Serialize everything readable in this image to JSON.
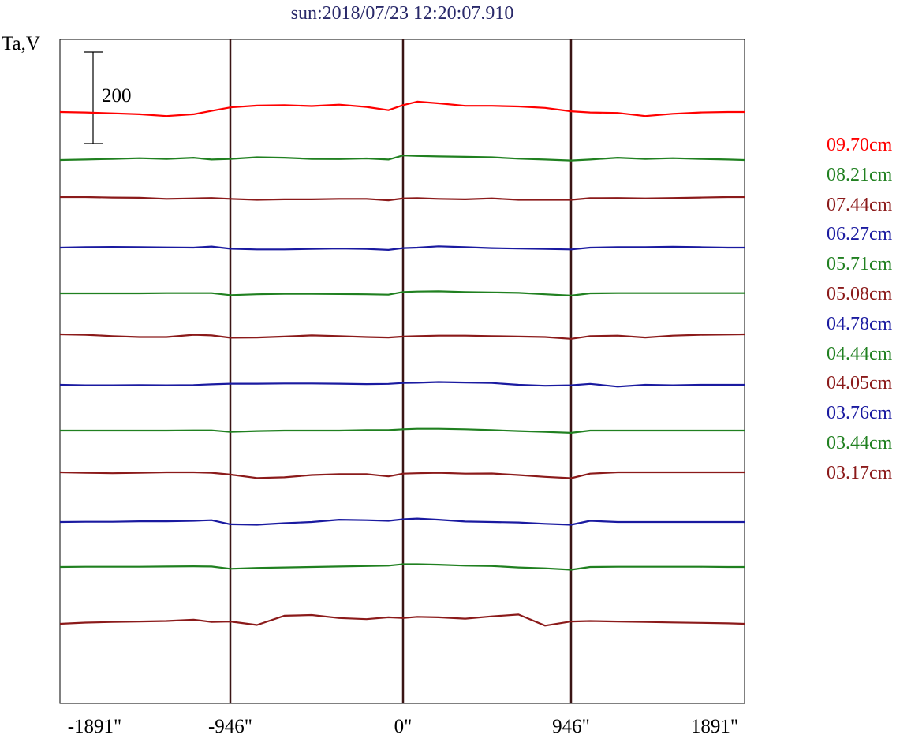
{
  "title": "sun:2018/07/23 12:20:07.910",
  "ylabel": "Ta,V",
  "scale_bar_label": "200",
  "chart_data": {
    "type": "line",
    "title": "sun:2018/07/23 12:20:07.910",
    "xlabel": "",
    "ylabel": "Ta,V",
    "xlim": [
      -1891,
      1891
    ],
    "x_ticks": [
      "-1891\"",
      "-946\"",
      "0\"",
      "946\"",
      "1891\""
    ],
    "x_tick_values": [
      -1891,
      -946,
      0,
      946,
      1891
    ],
    "vertical_lines": [
      -946,
      0,
      946
    ],
    "scale_bar_value": 200,
    "grid": false,
    "legend_position": "right",
    "x": [
      -1891,
      -1750,
      -1600,
      -1450,
      -1300,
      -1150,
      -1050,
      -946,
      -800,
      -650,
      -500,
      -350,
      -200,
      -80,
      0,
      80,
      200,
      350,
      500,
      650,
      800,
      946,
      1050,
      1200,
      1350,
      1500,
      1650,
      1800,
      1891
    ],
    "series": [
      {
        "name": "09.70cm",
        "color": "#ff0000",
        "values": [
          0,
          -2,
          -6,
          -10,
          -18,
          -10,
          5,
          20,
          28,
          30,
          26,
          32,
          22,
          8,
          30,
          45,
          38,
          27,
          27,
          24,
          18,
          3,
          -2,
          -4,
          -18,
          -8,
          -2,
          0,
          0
        ]
      },
      {
        "name": "08.21cm",
        "color": "#208020",
        "values": [
          0,
          2,
          5,
          8,
          5,
          10,
          2,
          5,
          12,
          10,
          5,
          4,
          7,
          2,
          20,
          18,
          16,
          14,
          12,
          6,
          2,
          -2,
          2,
          10,
          5,
          8,
          5,
          2,
          0
        ]
      },
      {
        "name": "07.44cm",
        "color": "#8b1a1a",
        "values": [
          0,
          0,
          -2,
          -3,
          -8,
          -6,
          -4,
          -8,
          -12,
          -10,
          -10,
          -8,
          -8,
          -14,
          -6,
          -5,
          -8,
          -10,
          -6,
          -12,
          -12,
          -12,
          -5,
          -4,
          -6,
          -4,
          -2,
          0,
          0
        ]
      },
      {
        "name": "06.27cm",
        "color": "#1a1aa0",
        "values": [
          0,
          2,
          3,
          2,
          1,
          0,
          5,
          -5,
          -8,
          -8,
          -6,
          -4,
          -6,
          -10,
          -2,
          0,
          6,
          2,
          -2,
          -4,
          -6,
          -8,
          0,
          2,
          2,
          4,
          2,
          0,
          0
        ]
      },
      {
        "name": "05.71cm",
        "color": "#208020",
        "values": [
          0,
          0,
          0,
          0,
          1,
          1,
          1,
          -8,
          -4,
          -2,
          -2,
          -3,
          -4,
          -6,
          6,
          8,
          9,
          6,
          4,
          2,
          -4,
          -10,
          0,
          1,
          1,
          1,
          1,
          1,
          1
        ]
      },
      {
        "name": "05.08cm",
        "color": "#8b1a1a",
        "values": [
          0,
          -2,
          -8,
          -12,
          -12,
          -2,
          -5,
          -15,
          -14,
          -10,
          -5,
          -8,
          -12,
          -14,
          -10,
          -8,
          -6,
          -6,
          -8,
          -10,
          -12,
          -20,
          -8,
          -6,
          -14,
          -6,
          -2,
          -1,
          0
        ]
      },
      {
        "name": "04.78cm",
        "color": "#1a1aa0",
        "values": [
          0,
          -2,
          -2,
          -1,
          -2,
          -1,
          2,
          5,
          5,
          6,
          6,
          5,
          3,
          4,
          8,
          9,
          12,
          10,
          8,
          0,
          -4,
          -2,
          4,
          -8,
          0,
          -2,
          0,
          0,
          0
        ]
      },
      {
        "name": "04.44cm",
        "color": "#208020",
        "values": [
          0,
          0,
          0,
          0,
          0,
          1,
          1,
          -6,
          -2,
          0,
          0,
          0,
          2,
          2,
          6,
          8,
          8,
          6,
          2,
          -2,
          -6,
          -10,
          0,
          0,
          0,
          0,
          0,
          0,
          0
        ]
      },
      {
        "name": "04.05cm",
        "color": "#8b1a1a",
        "values": [
          0,
          -2,
          -4,
          -2,
          0,
          0,
          -2,
          -10,
          -25,
          -22,
          -12,
          -8,
          -8,
          -18,
          -6,
          -4,
          -2,
          -6,
          -5,
          -12,
          -20,
          -26,
          -6,
          0,
          0,
          0,
          0,
          0,
          0
        ]
      },
      {
        "name": "03.76cm",
        "color": "#1a1aa0",
        "values": [
          0,
          1,
          1,
          3,
          3,
          5,
          8,
          -10,
          -12,
          -5,
          0,
          10,
          8,
          5,
          12,
          15,
          10,
          2,
          0,
          -2,
          -8,
          -12,
          5,
          0,
          0,
          0,
          0,
          0,
          0
        ]
      },
      {
        "name": "03.44cm",
        "color": "#208020",
        "values": [
          0,
          1,
          1,
          1,
          2,
          3,
          2,
          -8,
          -4,
          -2,
          0,
          2,
          4,
          6,
          12,
          12,
          10,
          6,
          4,
          -2,
          -6,
          -12,
          0,
          1,
          1,
          1,
          1,
          0,
          0
        ]
      },
      {
        "name": "03.17cm",
        "color": "#8b1a1a",
        "values": [
          0,
          5,
          8,
          10,
          12,
          18,
          8,
          10,
          -5,
          35,
          38,
          25,
          20,
          28,
          25,
          30,
          28,
          22,
          32,
          40,
          -8,
          10,
          12,
          10,
          8,
          6,
          4,
          2,
          0
        ]
      }
    ]
  }
}
